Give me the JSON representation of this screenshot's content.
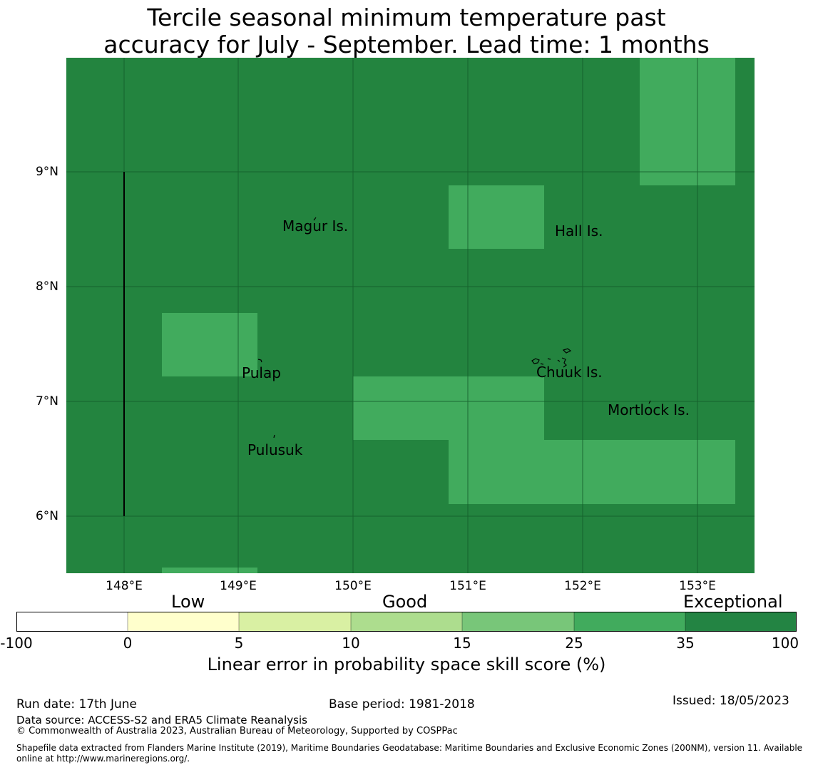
{
  "title_line1": "Tercile seasonal minimum temperature past",
  "title_line2": "accuracy for July - September. Lead time: 1 months",
  "map": {
    "colors": {
      "exceptional": "#23843f",
      "high": "#41ab5d",
      "grid": "#145a28",
      "coast": "#000000"
    },
    "lat_labels": [
      "9°N",
      "8°N",
      "7°N",
      "6°N"
    ],
    "lon_labels": [
      "148°E",
      "149°E",
      "150°E",
      "151°E",
      "152°E",
      "153°E"
    ],
    "places": [
      "Magur Is.",
      "Hall Is.",
      "Pulap",
      "Chuuk Is.",
      "Mortlock Is.",
      "Pulusuk"
    ]
  },
  "legend": {
    "categories": [
      "Low",
      "Good",
      "Exceptional"
    ],
    "ticks": [
      "-100",
      "0",
      "5",
      "10",
      "15",
      "25",
      "35",
      "100"
    ],
    "colors": [
      "#ffffff",
      "#ffffcc",
      "#d9f0a3",
      "#addd8e",
      "#78c679",
      "#41ab5d",
      "#238443"
    ],
    "label": "Linear error in probability space skill score (%)"
  },
  "footer": {
    "run_date": "Run date: 17th June",
    "base_period": "Base period: 1981-2018",
    "issued": "Issued: 18/05/2023",
    "data_source": "Data source: ACCESS-S2 and ERA5 Climate Reanalysis",
    "copyright": "© Commonwealth of Australia 2023, Australian Bureau of Meteorology, Supported by COSPPac",
    "shapefile_line1": "Shapefile data extracted from Flanders Marine Institute (2019), Maritime Boundaries Geodatabase: Maritime Boundaries and Exclusive Economic Zones (200NM), version 11. Available",
    "shapefile_line2": "online at http://www.marineregions.org/."
  }
}
